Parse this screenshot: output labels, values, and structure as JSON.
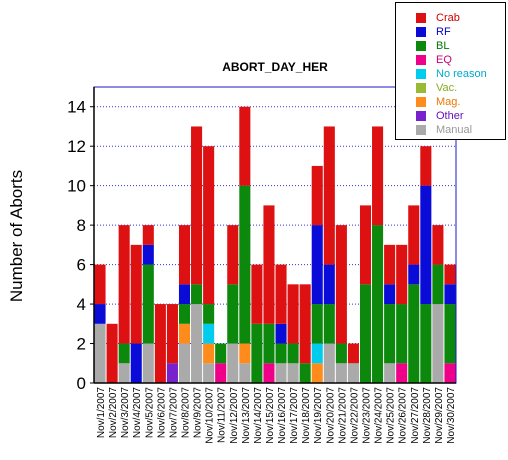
{
  "chart_data": {
    "type": "bar",
    "stacked": true,
    "title": "ABORT_DAY_HER",
    "xlabel": "",
    "ylabel": "Number of Aborts",
    "ylim": [
      0,
      15
    ],
    "yticks": [
      0,
      2,
      4,
      6,
      8,
      10,
      12,
      14
    ],
    "grid": true,
    "legend_position": "top-right",
    "categories": [
      "Nov/1/2007",
      "Nov/2/2007",
      "Nov/3/2007",
      "Nov/4/2007",
      "Nov/5/2007",
      "Nov/6/2007",
      "Nov/7/2007",
      "Nov/8/2007",
      "Nov/9/2007",
      "Nov/10/2007",
      "Nov/11/2007",
      "Nov/12/2007",
      "Nov/13/2007",
      "Nov/14/2007",
      "Nov/15/2007",
      "Nov/16/2007",
      "Nov/17/2007",
      "Nov/18/2007",
      "Nov/19/2007",
      "Nov/20/2007",
      "Nov/21/2007",
      "Nov/22/2007",
      "Nov/23/2007",
      "Nov/24/2007",
      "Nov/25/2007",
      "Nov/26/2007",
      "Nov/27/2007",
      "Nov/28/2007",
      "Nov/29/2007",
      "Nov/30/2007"
    ],
    "series": [
      {
        "name": "Crab",
        "color": "#dd1111",
        "text_color": "#cc0000",
        "values": [
          2,
          3,
          6,
          5,
          1,
          4,
          3,
          3,
          8,
          8,
          0,
          3,
          4,
          3,
          6,
          3,
          3,
          4,
          3,
          7,
          6,
          1,
          4,
          5,
          2,
          3,
          3,
          2,
          2,
          1
        ]
      },
      {
        "name": "RF",
        "color": "#0b0bd8",
        "text_color": "#0000cc",
        "values": [
          1,
          0,
          0,
          2,
          1,
          0,
          0,
          1,
          0,
          0,
          0,
          0,
          0,
          0,
          0,
          1,
          0,
          0,
          4,
          2,
          0,
          0,
          0,
          0,
          1,
          0,
          1,
          6,
          0,
          1
        ]
      },
      {
        "name": "BL",
        "color": "#0c880c",
        "text_color": "#007700",
        "values": [
          0,
          0,
          1,
          0,
          4,
          0,
          0,
          1,
          1,
          1,
          1,
          3,
          8,
          3,
          2,
          1,
          1,
          1,
          2,
          2,
          1,
          0,
          5,
          8,
          3,
          3,
          5,
          4,
          2,
          3
        ]
      },
      {
        "name": "EQ",
        "color": "#ee0088",
        "text_color": "#cc0077",
        "values": [
          0,
          0,
          0,
          0,
          0,
          0,
          0,
          0,
          0,
          0,
          1,
          0,
          0,
          0,
          1,
          0,
          0,
          0,
          0,
          0,
          0,
          0,
          0,
          0,
          0,
          1,
          0,
          0,
          0,
          1
        ]
      },
      {
        "name": "No reason",
        "color": "#00ccee",
        "text_color": "#00aacc",
        "values": [
          0,
          0,
          0,
          0,
          0,
          0,
          0,
          0,
          0,
          1,
          0,
          0,
          0,
          0,
          0,
          0,
          0,
          0,
          1,
          0,
          0,
          0,
          0,
          0,
          0,
          0,
          0,
          0,
          0,
          0
        ]
      },
      {
        "name": "Vac.",
        "color": "#99bb33",
        "text_color": "#88aa22",
        "values": [
          0,
          0,
          0,
          0,
          0,
          0,
          0,
          0,
          0,
          0,
          0,
          0,
          0,
          0,
          0,
          0,
          0,
          0,
          0,
          0,
          0,
          0,
          0,
          0,
          0,
          0,
          0,
          0,
          0,
          0
        ]
      },
      {
        "name": "Mag.",
        "color": "#ff8c1a",
        "text_color": "#ee7700",
        "values": [
          0,
          0,
          0,
          0,
          0,
          0,
          0,
          1,
          0,
          1,
          0,
          0,
          1,
          0,
          0,
          0,
          0,
          0,
          1,
          0,
          0,
          0,
          0,
          0,
          0,
          0,
          0,
          0,
          0,
          0
        ]
      },
      {
        "name": "Other",
        "color": "#7722cc",
        "text_color": "#6611bb",
        "values": [
          0,
          0,
          0,
          0,
          0,
          0,
          1,
          0,
          0,
          0,
          0,
          0,
          0,
          0,
          0,
          0,
          0,
          0,
          0,
          0,
          0,
          0,
          0,
          0,
          0,
          0,
          0,
          0,
          0,
          0
        ]
      },
      {
        "name": "Manual",
        "color": "#aaaaaa",
        "text_color": "#999999",
        "values": [
          3,
          0,
          1,
          0,
          2,
          0,
          0,
          2,
          4,
          1,
          0,
          2,
          1,
          0,
          0,
          1,
          1,
          0,
          0,
          2,
          1,
          1,
          0,
          0,
          1,
          0,
          0,
          0,
          4,
          0
        ]
      }
    ]
  }
}
